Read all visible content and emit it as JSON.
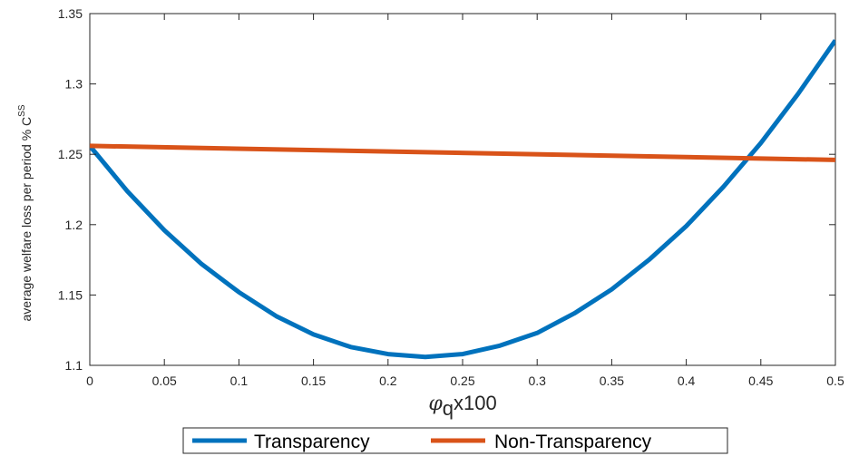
{
  "chart_data": {
    "type": "line",
    "xlabel": {
      "symbol": "φ",
      "subscript": "q",
      "suffix": "x100"
    },
    "ylabel": {
      "text": "average welfare loss per period % C",
      "superscript": "SS"
    },
    "xlim": [
      0,
      0.5
    ],
    "ylim": [
      1.1,
      1.35
    ],
    "xticks": [
      0,
      0.05,
      0.1,
      0.15,
      0.2,
      0.25,
      0.3,
      0.35,
      0.4,
      0.45,
      0.5
    ],
    "xtick_labels": [
      "0",
      "0.05",
      "0.1",
      "0.15",
      "0.2",
      "0.25",
      "0.3",
      "0.35",
      "0.4",
      "0.45",
      "0.5"
    ],
    "yticks": [
      1.1,
      1.15,
      1.2,
      1.25,
      1.3,
      1.35
    ],
    "ytick_labels": [
      "1.1",
      "1.15",
      "1.2",
      "1.25",
      "1.3",
      "1.35"
    ],
    "grid": false,
    "legend_position": "bottom-center",
    "series": [
      {
        "name": "Transparency",
        "color": "#0072BD",
        "x": [
          0,
          0.025,
          0.05,
          0.075,
          0.1,
          0.125,
          0.15,
          0.175,
          0.2,
          0.225,
          0.25,
          0.275,
          0.3,
          0.325,
          0.35,
          0.375,
          0.4,
          0.425,
          0.45,
          0.475,
          0.5
        ],
        "y": [
          1.256,
          1.224,
          1.196,
          1.172,
          1.152,
          1.135,
          1.122,
          1.113,
          1.108,
          1.106,
          1.108,
          1.114,
          1.123,
          1.137,
          1.154,
          1.175,
          1.199,
          1.227,
          1.258,
          1.293,
          1.331
        ]
      },
      {
        "name": "Non-Transparency",
        "color": "#D95319",
        "x": [
          0,
          0.5
        ],
        "y": [
          1.256,
          1.246
        ]
      }
    ]
  }
}
